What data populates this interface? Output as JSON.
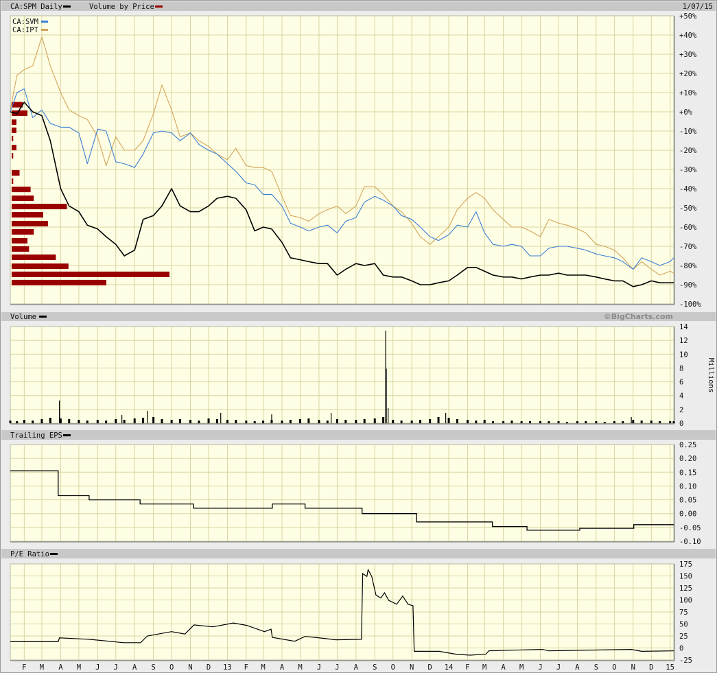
{
  "header": {
    "title": "CA:SPM Daily",
    "vbp_label": "Volume by Price",
    "date": "1/07/15"
  },
  "colors": {
    "spm": "#000000",
    "svm": "#3a7fd5",
    "ipt": "#d2a559",
    "vbp": "#990000",
    "volume": "#000000",
    "eps": "#000000",
    "pe": "#000000",
    "plot_bg": "#fefee4",
    "grid": "#d8d5a2",
    "header_bar": "#c8c8c8"
  },
  "xaxis": {
    "xlim": [
      "2012-01-09",
      "2015-01-07"
    ],
    "labels": [
      "F",
      "M",
      "A",
      "M",
      "J",
      "J",
      "A",
      "S",
      "O",
      "N",
      "D",
      "13",
      "F",
      "M",
      "A",
      "M",
      "J",
      "J",
      "A",
      "S",
      "O",
      "N",
      "D",
      "14",
      "F",
      "M",
      "A",
      "M",
      "J",
      "J",
      "A",
      "S",
      "O",
      "N",
      "D",
      "15"
    ]
  },
  "chart_data": [
    {
      "type": "line",
      "panel": "price",
      "legend": [
        {
          "label": "CA:SVM",
          "color": "#3a7fd5"
        },
        {
          "label": "CA:IPT",
          "color": "#d2a559"
        }
      ],
      "ylim": [
        -100,
        50
      ],
      "yticks": [
        "+50%",
        "+40%",
        "+30%",
        "+20%",
        "+10%",
        "+0%",
        "-10%",
        "-20%",
        "-30%",
        "-40%",
        "-50%",
        "-60%",
        "-70%",
        "-80%",
        "-90%",
        "-100%"
      ],
      "grid": true,
      "x": [
        "2012-01-09",
        "2012-01-20",
        "2012-02-01",
        "2012-02-15",
        "2012-03-01",
        "2012-03-15",
        "2012-04-01",
        "2012-04-15",
        "2012-05-01",
        "2012-05-15",
        "2012-06-01",
        "2012-06-15",
        "2012-07-01",
        "2012-07-15",
        "2012-08-01",
        "2012-08-15",
        "2012-09-01",
        "2012-09-15",
        "2012-10-01",
        "2012-10-15",
        "2012-11-01",
        "2012-11-15",
        "2012-12-01",
        "2012-12-15",
        "2013-01-01",
        "2013-01-15",
        "2013-02-01",
        "2013-02-15",
        "2013-03-01",
        "2013-03-15",
        "2013-04-01",
        "2013-04-15",
        "2013-05-01",
        "2013-05-15",
        "2013-06-01",
        "2013-06-15",
        "2013-07-01",
        "2013-07-15",
        "2013-08-01",
        "2013-08-15",
        "2013-09-01",
        "2013-09-15",
        "2013-10-01",
        "2013-10-15",
        "2013-11-01",
        "2013-11-15",
        "2013-12-01",
        "2013-12-15",
        "2014-01-01",
        "2014-01-15",
        "2014-02-01",
        "2014-02-15",
        "2014-03-01",
        "2014-03-15",
        "2014-04-01",
        "2014-04-15",
        "2014-05-01",
        "2014-05-15",
        "2014-06-01",
        "2014-06-15",
        "2014-07-01",
        "2014-07-15",
        "2014-08-01",
        "2014-08-15",
        "2014-09-01",
        "2014-09-15",
        "2014-10-01",
        "2014-10-15",
        "2014-11-01",
        "2014-11-15",
        "2014-12-01",
        "2014-12-15",
        "2015-01-01",
        "2015-01-07"
      ],
      "series": [
        {
          "name": "CA:SPM",
          "color": "#000000",
          "values": [
            0,
            -1,
            5,
            0,
            -2,
            -15,
            -40,
            -49,
            -52,
            -59,
            -61,
            -65,
            -69,
            -75,
            -72,
            -56,
            -54,
            -49,
            -40,
            -49,
            -52,
            -52,
            -49,
            -45,
            -44,
            -45,
            -51,
            -62,
            -60,
            -61,
            -68,
            -76,
            -77,
            -78,
            -79,
            -79,
            -85,
            -82,
            -79,
            -80,
            -79,
            -85,
            -86,
            -86,
            -88,
            -90,
            -90,
            -89,
            -88,
            -85,
            -81,
            -81,
            -83,
            -85,
            -86,
            -86,
            -87,
            -86,
            -85,
            -85,
            -84,
            -85,
            -85,
            -85,
            -86,
            -87,
            -88,
            -88,
            -91,
            -90,
            -88,
            -89,
            -89,
            -89
          ]
        },
        {
          "name": "CA:SVM",
          "color": "#3a7fd5",
          "values": [
            0,
            10,
            12,
            -3,
            1,
            -6,
            -8,
            -8,
            -11,
            -27,
            -9,
            -10,
            -26,
            -27,
            -29,
            -22,
            -11,
            -10,
            -11,
            -15,
            -11,
            -17,
            -20,
            -22,
            -27,
            -31,
            -37,
            -38,
            -43,
            -43,
            -49,
            -58,
            -60,
            -62,
            -60,
            -59,
            -63,
            -57,
            -55,
            -47,
            -44,
            -46,
            -49,
            -54,
            -56,
            -60,
            -65,
            -67,
            -64,
            -59,
            -60,
            -52,
            -63,
            -69,
            -70,
            -69,
            -70,
            -75,
            -75,
            -71,
            -70,
            -70,
            -71,
            -72,
            -74,
            -75,
            -76,
            -78,
            -82,
            -76,
            -78,
            -80,
            -78,
            -76
          ]
        },
        {
          "name": "CA:IPT",
          "color": "#d2a559",
          "values": [
            1,
            19,
            22,
            24,
            39,
            24,
            10,
            1,
            -2,
            -4,
            -13,
            -28,
            -13,
            -20,
            -20,
            -15,
            -1,
            14,
            1,
            -13,
            -11,
            -15,
            -18,
            -22,
            -25,
            -19,
            -28,
            -29,
            -29,
            -31,
            -44,
            -54,
            -55,
            -57,
            -53,
            -51,
            -49,
            -53,
            -49,
            -39,
            -39,
            -43,
            -49,
            -52,
            -58,
            -65,
            -69,
            -65,
            -60,
            -51,
            -45,
            -42,
            -45,
            -51,
            -56,
            -60,
            -60,
            -62,
            -65,
            -56,
            -58,
            -59,
            -61,
            -63,
            -69,
            -70,
            -72,
            -76,
            -82,
            -78,
            -82,
            -85,
            -83,
            -84
          ]
        }
      ]
    },
    {
      "type": "bar",
      "name": "Volume by Price",
      "orientation": "horizontal",
      "price_levels_pct": [
        3.7,
        -0.7,
        -5.4,
        -9.6,
        -13.9,
        -18.6,
        -22.9,
        -27.3,
        -31.8,
        -36.1,
        -40.4,
        -45.0,
        -49.3,
        -53.6,
        -58.2,
        -62.5,
        -67.1,
        -71.4,
        -75.7,
        -80.4,
        -84.6,
        -88.9
      ],
      "relative_volume": [
        7,
        10,
        3,
        3,
        1,
        3,
        1,
        0,
        5,
        1,
        12,
        14,
        35,
        20,
        23,
        14,
        10,
        11,
        28,
        36,
        100,
        60
      ]
    },
    {
      "type": "bar",
      "panel": "volume",
      "title": "Volume",
      "credit": "©BigCharts.com",
      "ylabel": "Millions",
      "ylim": [
        0,
        14
      ],
      "yticks": [
        "14",
        "12",
        "10",
        "8",
        "6",
        "4",
        "2",
        "0"
      ],
      "x": [
        "2012-01-09",
        "2012-01-20",
        "2012-02-01",
        "2012-02-15",
        "2012-03-01",
        "2012-03-15",
        "2012-04-01",
        "2012-04-15",
        "2012-05-01",
        "2012-05-15",
        "2012-06-01",
        "2012-06-15",
        "2012-07-01",
        "2012-07-15",
        "2012-08-01",
        "2012-08-15",
        "2012-09-01",
        "2012-09-15",
        "2012-10-01",
        "2012-10-15",
        "2012-11-01",
        "2012-11-15",
        "2012-12-01",
        "2012-12-15",
        "2013-01-01",
        "2013-01-15",
        "2013-02-01",
        "2013-02-15",
        "2013-03-01",
        "2013-03-15",
        "2013-04-01",
        "2013-04-15",
        "2013-05-01",
        "2013-05-15",
        "2013-06-01",
        "2013-06-15",
        "2013-07-01",
        "2013-07-15",
        "2013-08-01",
        "2013-08-15",
        "2013-09-01",
        "2013-09-15",
        "2013-10-01",
        "2013-10-15",
        "2013-11-01",
        "2013-11-15",
        "2013-12-01",
        "2013-12-15",
        "2014-01-01",
        "2014-01-15",
        "2014-02-01",
        "2014-02-15",
        "2014-03-01",
        "2014-03-15",
        "2014-04-01",
        "2014-04-15",
        "2014-05-01",
        "2014-05-15",
        "2014-06-01",
        "2014-06-15",
        "2014-07-01",
        "2014-07-15",
        "2014-08-01",
        "2014-08-15",
        "2014-09-01",
        "2014-09-15",
        "2014-10-01",
        "2014-10-15",
        "2014-11-01",
        "2014-11-15",
        "2014-12-01",
        "2014-12-15",
        "2015-01-01",
        "2015-01-07"
      ],
      "values": [
        0.4,
        0.3,
        0.5,
        0.4,
        0.6,
        0.8,
        0.7,
        0.6,
        0.5,
        0.4,
        0.5,
        0.4,
        0.6,
        0.5,
        0.7,
        0.8,
        0.9,
        0.6,
        0.5,
        0.6,
        0.5,
        0.4,
        0.7,
        0.6,
        0.5,
        0.5,
        0.4,
        0.3,
        0.4,
        0.5,
        0.4,
        0.5,
        0.6,
        0.7,
        0.5,
        0.4,
        0.6,
        0.5,
        0.5,
        0.6,
        0.7,
        0.9,
        0.5,
        0.4,
        0.4,
        0.5,
        0.6,
        0.9,
        0.8,
        0.6,
        0.5,
        0.4,
        0.5,
        0.3,
        0.3,
        0.4,
        0.3,
        0.3,
        0.3,
        0.3,
        0.3,
        0.2,
        0.3,
        0.3,
        0.3,
        0.2,
        0.3,
        0.3,
        0.5,
        0.4,
        0.4,
        0.3,
        0.3,
        0.3
      ],
      "spikes": [
        {
          "date": "2012-03-30",
          "value": 3.3
        },
        {
          "date": "2012-07-11",
          "value": 1.2
        },
        {
          "date": "2012-08-22",
          "value": 1.8
        },
        {
          "date": "2012-12-21",
          "value": 1.5
        },
        {
          "date": "2013-03-15",
          "value": 1.3
        },
        {
          "date": "2013-06-21",
          "value": 1.5
        },
        {
          "date": "2013-09-19",
          "value": 13.4
        },
        {
          "date": "2013-09-20",
          "value": 7.9
        },
        {
          "date": "2013-09-23",
          "value": 2.2
        },
        {
          "date": "2013-12-27",
          "value": 1.5
        },
        {
          "date": "2014-10-29",
          "value": 0.9
        }
      ]
    },
    {
      "type": "line",
      "panel": "eps",
      "title": "Trailing EPS",
      "step": true,
      "ylim": [
        -0.1,
        0.25
      ],
      "yticks": [
        "0.25",
        "0.20",
        "0.15",
        "0.10",
        "0.05",
        "0.00",
        "-0.05",
        "-0.10"
      ],
      "points": [
        [
          "2012-01-09",
          0.155
        ],
        [
          "2012-03-28",
          0.065
        ],
        [
          "2012-05-18",
          0.05
        ],
        [
          "2012-08-10",
          0.035
        ],
        [
          "2012-11-06",
          0.02
        ],
        [
          "2013-03-16",
          0.035
        ],
        [
          "2013-05-09",
          0.02
        ],
        [
          "2013-08-11",
          0.0
        ],
        [
          "2013-11-09",
          -0.03
        ],
        [
          "2014-03-14",
          -0.047
        ],
        [
          "2014-05-10",
          -0.06
        ],
        [
          "2014-08-05",
          -0.053
        ],
        [
          "2014-11-02",
          -0.04
        ],
        [
          "2015-01-07",
          -0.04
        ]
      ]
    },
    {
      "type": "line",
      "panel": "pe",
      "title": "P/E Ratio",
      "ylim": [
        -25,
        175
      ],
      "yticks": [
        "175",
        "150",
        "125",
        "100",
        "75",
        "50",
        "25",
        "0",
        "-25"
      ],
      "points": [
        [
          "2012-01-09",
          13
        ],
        [
          "2012-03-28",
          13
        ],
        [
          "2012-03-30",
          21
        ],
        [
          "2012-05-18",
          18
        ],
        [
          "2012-07-14",
          11
        ],
        [
          "2012-08-11",
          11
        ],
        [
          "2012-08-22",
          25
        ],
        [
          "2012-10-01",
          34
        ],
        [
          "2012-10-23",
          29
        ],
        [
          "2012-11-07",
          48
        ],
        [
          "2012-12-08",
          44
        ],
        [
          "2013-01-11",
          52
        ],
        [
          "2013-02-02",
          47
        ],
        [
          "2013-03-03",
          34
        ],
        [
          "2013-03-14",
          39
        ],
        [
          "2013-03-16",
          22
        ],
        [
          "2013-04-22",
          14
        ],
        [
          "2013-05-09",
          24
        ],
        [
          "2013-05-26",
          22
        ],
        [
          "2013-06-29",
          17
        ],
        [
          "2013-08-10",
          18
        ],
        [
          "2013-08-12",
          155
        ],
        [
          "2013-08-19",
          149
        ],
        [
          "2013-08-21",
          163
        ],
        [
          "2013-08-27",
          149
        ],
        [
          "2013-09-03",
          110
        ],
        [
          "2013-09-11",
          104
        ],
        [
          "2013-09-17",
          115
        ],
        [
          "2013-09-24",
          99
        ],
        [
          "2013-10-07",
          91
        ],
        [
          "2013-10-17",
          108
        ],
        [
          "2013-10-26",
          91
        ],
        [
          "2013-11-03",
          88
        ],
        [
          "2013-11-05",
          -7
        ],
        [
          "2013-12-16",
          -7
        ],
        [
          "2014-01-13",
          -13
        ],
        [
          "2014-02-05",
          -15
        ],
        [
          "2014-03-03",
          -13
        ],
        [
          "2014-03-08",
          -6
        ],
        [
          "2014-06-04",
          -3
        ],
        [
          "2014-06-15",
          -6
        ],
        [
          "2014-10-29",
          -3
        ],
        [
          "2014-11-15",
          -7
        ],
        [
          "2015-01-07",
          -6
        ]
      ]
    }
  ]
}
